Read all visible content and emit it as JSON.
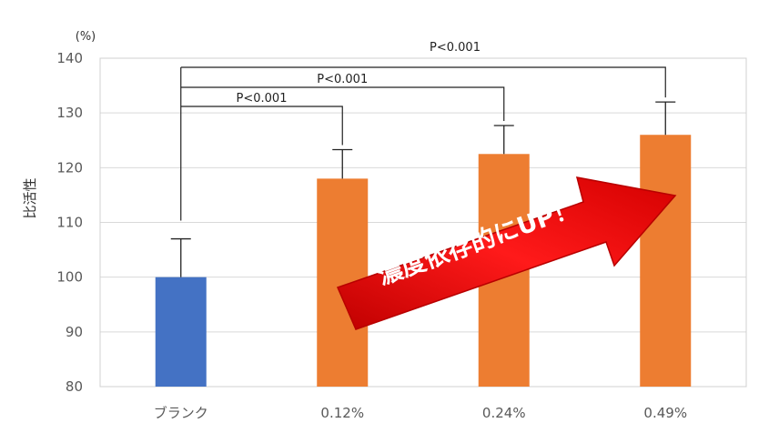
{
  "chart_data": {
    "type": "bar",
    "categories": [
      "ブランク",
      "0.12%",
      "0.24%",
      "0.49%"
    ],
    "values": [
      100,
      118,
      122.5,
      126
    ],
    "errors": [
      7,
      5.3,
      5.2,
      6
    ],
    "colors": [
      "#4472c4",
      "#ed7d31",
      "#ed7d31",
      "#ed7d31"
    ],
    "ylabel": "比活性",
    "yunit": "(%)",
    "ylim": [
      80,
      140
    ],
    "yticks": [
      80,
      90,
      100,
      110,
      120,
      130,
      140
    ],
    "grid": true,
    "annotations": [
      {
        "from": "ブランク",
        "to": "0.12%",
        "label": "P<0.001"
      },
      {
        "from": "ブランク",
        "to": "0.24%",
        "label": "P<0.001"
      },
      {
        "from": "ブランク",
        "to": "0.49%",
        "label": "P<0.001"
      }
    ],
    "arrow_text": "濃度依存的にUP！"
  }
}
